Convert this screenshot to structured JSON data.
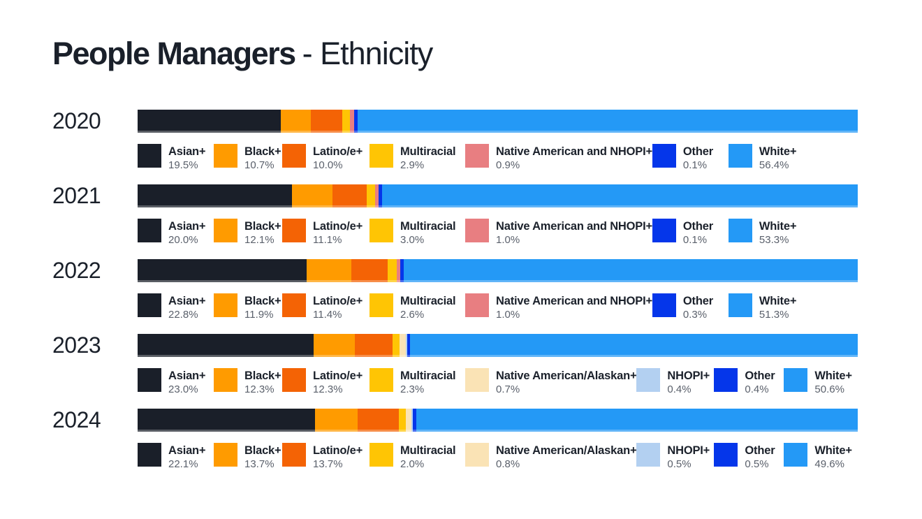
{
  "title": {
    "primary": "People Managers",
    "secondary": "- Ethnicity"
  },
  "chart_data": {
    "type": "bar",
    "variant": "horizontal-stacked",
    "title": "People Managers - Ethnicity",
    "unit": "%",
    "legend_position": "below-each-bar",
    "note": "Rendered segment widths in the source graphic are not strictly proportional to the labeled percentages; bar_width_pct captures the visual widths as drawn.",
    "years": [
      {
        "year": "2020",
        "segments": [
          {
            "label": "Asian+",
            "value": "19.5%",
            "pct": 19.5,
            "color": "#1A1F29",
            "bar_width_pct": 19.9,
            "legend_min_w": 109
          },
          {
            "label": "Black+",
            "value": "10.7%",
            "pct": 10.7,
            "color": "#FF9B00",
            "bar_width_pct": 4.2,
            "legend_min_w": 98
          },
          {
            "label": "Latino/e+",
            "value": "10.0%",
            "pct": 10.0,
            "color": "#F46305",
            "bar_width_pct": 4.3,
            "legend_min_w": 125
          },
          {
            "label": "Multiracial",
            "value": "2.9%",
            "pct": 2.9,
            "color": "#FFC504",
            "bar_width_pct": 1.1,
            "legend_min_w": 137
          },
          {
            "label": "Native American and NHOPI+",
            "value": "0.9%",
            "pct": 0.9,
            "color": "#E87E81",
            "bar_width_pct": 0.55,
            "legend_min_w": 265
          },
          {
            "label": "Other",
            "value": "0.1%",
            "pct": 0.1,
            "color": "#0536EA",
            "bar_width_pct": 0.55,
            "legend_min_w": 109
          },
          {
            "label": "White+",
            "value": "56.4%",
            "pct": 56.4,
            "color": "#2499F6",
            "bar_width_pct": 69.4,
            "legend_min_w": 0
          }
        ]
      },
      {
        "year": "2021",
        "segments": [
          {
            "label": "Asian+",
            "value": "20.0%",
            "pct": 20.0,
            "color": "#1A1F29",
            "bar_width_pct": 21.4,
            "legend_min_w": 109
          },
          {
            "label": "Black+",
            "value": "12.1%",
            "pct": 12.1,
            "color": "#FF9B00",
            "bar_width_pct": 5.7,
            "legend_min_w": 98
          },
          {
            "label": "Latino/e+",
            "value": "11.1%",
            "pct": 11.1,
            "color": "#F46305",
            "bar_width_pct": 4.7,
            "legend_min_w": 125
          },
          {
            "label": "Multiracial",
            "value": "3.0%",
            "pct": 3.0,
            "color": "#FFC504",
            "bar_width_pct": 1.2,
            "legend_min_w": 137
          },
          {
            "label": "Native American and NHOPI+",
            "value": "1.0%",
            "pct": 1.0,
            "color": "#E87E81",
            "bar_width_pct": 0.5,
            "legend_min_w": 265
          },
          {
            "label": "Other",
            "value": "0.1%",
            "pct": 0.1,
            "color": "#0536EA",
            "bar_width_pct": 0.5,
            "legend_min_w": 109
          },
          {
            "label": "White+",
            "value": "53.3%",
            "pct": 53.3,
            "color": "#2499F6",
            "bar_width_pct": 66.0,
            "legend_min_w": 0
          }
        ]
      },
      {
        "year": "2022",
        "segments": [
          {
            "label": "Asian+",
            "value": "22.8%",
            "pct": 22.8,
            "color": "#1A1F29",
            "bar_width_pct": 23.5,
            "legend_min_w": 109
          },
          {
            "label": "Black+",
            "value": "11.9%",
            "pct": 11.9,
            "color": "#FF9B00",
            "bar_width_pct": 6.2,
            "legend_min_w": 98
          },
          {
            "label": "Latino/e+",
            "value": "11.4%",
            "pct": 11.4,
            "color": "#F46305",
            "bar_width_pct": 5.0,
            "legend_min_w": 125
          },
          {
            "label": "Multiracial",
            "value": "2.6%",
            "pct": 2.6,
            "color": "#FFC504",
            "bar_width_pct": 1.25,
            "legend_min_w": 137
          },
          {
            "label": "Native American and NHOPI+",
            "value": "1.0%",
            "pct": 1.0,
            "color": "#E87E81",
            "bar_width_pct": 0.5,
            "legend_min_w": 265
          },
          {
            "label": "Other",
            "value": "0.3%",
            "pct": 0.3,
            "color": "#0536EA",
            "bar_width_pct": 0.5,
            "legend_min_w": 109
          },
          {
            "label": "White+",
            "value": "51.3%",
            "pct": 51.3,
            "color": "#2499F6",
            "bar_width_pct": 63.05,
            "legend_min_w": 0
          }
        ]
      },
      {
        "year": "2023",
        "segments": [
          {
            "label": "Asian+",
            "value": "23.0%",
            "pct": 23.0,
            "color": "#1A1F29",
            "bar_width_pct": 24.4,
            "legend_min_w": 109
          },
          {
            "label": "Black+",
            "value": "12.3%",
            "pct": 12.3,
            "color": "#FF9B00",
            "bar_width_pct": 5.8,
            "legend_min_w": 98
          },
          {
            "label": "Latino/e+",
            "value": "12.3%",
            "pct": 12.3,
            "color": "#F46305",
            "bar_width_pct": 5.25,
            "legend_min_w": 125
          },
          {
            "label": "Multiracial",
            "value": "2.3%",
            "pct": 2.3,
            "color": "#FFC504",
            "bar_width_pct": 0.95,
            "legend_min_w": 137
          },
          {
            "label": "Native American/Alaskan+",
            "value": "0.7%",
            "pct": 0.7,
            "color": "#FAE3B5",
            "bar_width_pct": 0.8,
            "legend_min_w": 245
          },
          {
            "label": "NHOPI+",
            "value": "0.4%",
            "pct": 0.4,
            "color": "#B3D0F1",
            "bar_width_pct": 0.2,
            "legend_min_w": 111
          },
          {
            "label": "Other",
            "value": "0.4%",
            "pct": 0.4,
            "color": "#0536EA",
            "bar_width_pct": 0.4,
            "legend_min_w": 100
          },
          {
            "label": "White+",
            "value": "50.6%",
            "pct": 50.6,
            "color": "#2499F6",
            "bar_width_pct": 62.2,
            "legend_min_w": 0
          }
        ]
      },
      {
        "year": "2024",
        "segments": [
          {
            "label": "Asian+",
            "value": "22.1%",
            "pct": 22.1,
            "color": "#1A1F29",
            "bar_width_pct": 24.6,
            "legend_min_w": 109
          },
          {
            "label": "Black+",
            "value": "13.7%",
            "pct": 13.7,
            "color": "#FF9B00",
            "bar_width_pct": 6.0,
            "legend_min_w": 98
          },
          {
            "label": "Latino/e+",
            "value": "13.7%",
            "pct": 13.7,
            "color": "#F46305",
            "bar_width_pct": 5.7,
            "legend_min_w": 125
          },
          {
            "label": "Multiracial",
            "value": "2.0%",
            "pct": 2.0,
            "color": "#FFC504",
            "bar_width_pct": 0.9,
            "legend_min_w": 137
          },
          {
            "label": "Native American/Alaskan+",
            "value": "0.8%",
            "pct": 0.8,
            "color": "#FAE3B5",
            "bar_width_pct": 0.8,
            "legend_min_w": 245
          },
          {
            "label": "NHOPI+",
            "value": "0.5%",
            "pct": 0.5,
            "color": "#B3D0F1",
            "bar_width_pct": 0.2,
            "legend_min_w": 111
          },
          {
            "label": "Other",
            "value": "0.5%",
            "pct": 0.5,
            "color": "#0536EA",
            "bar_width_pct": 0.5,
            "legend_min_w": 100
          },
          {
            "label": "White+",
            "value": "49.6%",
            "pct": 49.6,
            "color": "#2499F6",
            "bar_width_pct": 61.3,
            "legend_min_w": 0
          }
        ]
      }
    ]
  }
}
